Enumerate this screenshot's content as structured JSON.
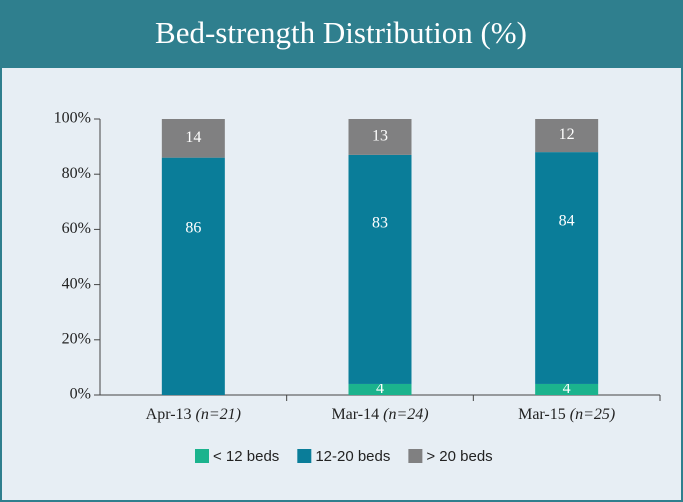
{
  "chart_data": {
    "type": "stacked_bar",
    "title": "Bed-strength Distribution (%)",
    "categories": [
      "Apr-13",
      "Mar-14",
      "Mar-15"
    ],
    "category_notes": [
      "(n=21)",
      "(n=24)",
      "(n=25)"
    ],
    "series": [
      {
        "name": "< 12 beds",
        "color": "#1bb38d",
        "values": [
          null,
          4,
          4
        ]
      },
      {
        "name": "12-20 beds",
        "color": "#0a7d99",
        "values": [
          86,
          83,
          84
        ]
      },
      {
        "name": "> 20 beds",
        "color": "#808081",
        "values": [
          14,
          13,
          12
        ]
      }
    ],
    "ylim": [
      0,
      100
    ],
    "yticks": [
      {
        "value": 0,
        "label": "0%"
      },
      {
        "value": 20,
        "label": "20%"
      },
      {
        "value": 40,
        "label": "40%"
      },
      {
        "value": 60,
        "label": "60%"
      },
      {
        "value": 80,
        "label": "80%"
      },
      {
        "value": 100,
        "label": "100%"
      }
    ],
    "grid": false,
    "legend": "bottom"
  }
}
